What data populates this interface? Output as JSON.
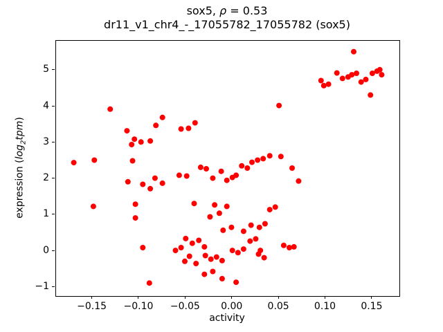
{
  "title": {
    "prefix": "sox5, ",
    "rho": "ρ",
    "rest": " = 0.53"
  },
  "subtitle": "dr11_v1_chr4_-_17055782_17055782 (sox5)",
  "axes": {
    "xlabel": "activity",
    "ylabel_pre": "expression (",
    "ylabel_log": "log",
    "ylabel_sub": "2",
    "ylabel_tpm": "tpm",
    "ylabel_close": ")"
  },
  "chart_data": {
    "type": "scatter",
    "title": "sox5, ρ = 0.53",
    "subtitle": "dr11_v1_chr4_-_17055782_17055782 (sox5)",
    "xlabel": "activity",
    "ylabel": "expression (log2 tpm)",
    "xlim": [
      -0.189,
      0.179
    ],
    "ylim": [
      -1.24,
      5.82
    ],
    "xticks": [
      -0.15,
      -0.1,
      -0.05,
      0.0,
      0.05,
      0.1,
      0.15
    ],
    "xtick_labels": [
      "−0.15",
      "−0.10",
      "−0.05",
      "0.00",
      "0.05",
      "0.10",
      "0.15"
    ],
    "yticks": [
      -1,
      0,
      1,
      2,
      3,
      4,
      5
    ],
    "ytick_labels": [
      "−1",
      "0",
      "1",
      "2",
      "3",
      "4",
      "5"
    ],
    "grid": false,
    "legend": "none",
    "marker_color": "#ff0000",
    "marker_diameter_px": 8,
    "points": [
      [
        0.13,
        5.52
      ],
      [
        0.095,
        4.72
      ],
      [
        0.098,
        4.58
      ],
      [
        0.103,
        4.62
      ],
      [
        0.112,
        4.93
      ],
      [
        0.118,
        4.78
      ],
      [
        0.124,
        4.82
      ],
      [
        0.128,
        4.88
      ],
      [
        0.133,
        4.92
      ],
      [
        0.138,
        4.68
      ],
      [
        0.143,
        4.75
      ],
      [
        0.15,
        4.92
      ],
      [
        0.155,
        4.98
      ],
      [
        0.158,
        5.02
      ],
      [
        0.16,
        4.88
      ],
      [
        0.148,
        4.32
      ],
      [
        -0.131,
        3.93
      ],
      [
        0.05,
        4.03
      ],
      [
        -0.075,
        3.7
      ],
      [
        -0.082,
        3.48
      ],
      [
        -0.04,
        3.55
      ],
      [
        -0.055,
        3.38
      ],
      [
        -0.047,
        3.4
      ],
      [
        -0.113,
        3.33
      ],
      [
        -0.105,
        3.1
      ],
      [
        -0.098,
        3.02
      ],
      [
        -0.108,
        2.95
      ],
      [
        -0.088,
        3.05
      ],
      [
        -0.17,
        2.45
      ],
      [
        -0.148,
        2.52
      ],
      [
        -0.107,
        2.5
      ],
      [
        -0.149,
        1.24
      ],
      [
        -0.104,
        1.3
      ],
      [
        -0.112,
        1.92
      ],
      [
        -0.096,
        1.85
      ],
      [
        -0.088,
        1.73
      ],
      [
        -0.083,
        2.02
      ],
      [
        -0.075,
        1.88
      ],
      [
        -0.104,
        0.92
      ],
      [
        -0.096,
        0.1
      ],
      [
        -0.089,
        -0.88
      ],
      [
        -0.057,
        2.1
      ],
      [
        -0.049,
        2.08
      ],
      [
        -0.034,
        2.32
      ],
      [
        -0.028,
        2.28
      ],
      [
        -0.021,
        2.02
      ],
      [
        -0.012,
        2.21
      ],
      [
        -0.006,
        1.96
      ],
      [
        0.0,
        2.04
      ],
      [
        0.004,
        2.1
      ],
      [
        0.01,
        2.36
      ],
      [
        0.016,
        2.3
      ],
      [
        0.021,
        2.46
      ],
      [
        0.027,
        2.52
      ],
      [
        0.033,
        2.56
      ],
      [
        0.04,
        2.64
      ],
      [
        0.052,
        2.62
      ],
      [
        0.064,
        2.3
      ],
      [
        0.071,
        1.94
      ],
      [
        -0.041,
        1.32
      ],
      [
        -0.019,
        1.28
      ],
      [
        -0.006,
        1.24
      ],
      [
        -0.014,
        1.05
      ],
      [
        -0.024,
        0.95
      ],
      [
        0.04,
        1.15
      ],
      [
        0.046,
        1.22
      ],
      [
        -0.001,
        0.66
      ],
      [
        -0.01,
        0.58
      ],
      [
        0.012,
        0.55
      ],
      [
        0.02,
        0.72
      ],
      [
        0.029,
        0.66
      ],
      [
        0.035,
        0.76
      ],
      [
        -0.036,
        0.3
      ],
      [
        -0.043,
        0.22
      ],
      [
        -0.05,
        0.35
      ],
      [
        -0.055,
        0.1
      ],
      [
        -0.061,
        0.02
      ],
      [
        -0.03,
        0.12
      ],
      [
        0.0,
        0.02
      ],
      [
        0.006,
        -0.04
      ],
      [
        0.012,
        0.06
      ],
      [
        0.019,
        0.28
      ],
      [
        0.025,
        0.34
      ],
      [
        0.03,
        0.02
      ],
      [
        0.055,
        0.16
      ],
      [
        0.061,
        0.1
      ],
      [
        0.066,
        0.12
      ],
      [
        -0.046,
        -0.14
      ],
      [
        -0.051,
        -0.28
      ],
      [
        -0.039,
        -0.34
      ],
      [
        -0.029,
        -0.12
      ],
      [
        -0.023,
        -0.22
      ],
      [
        -0.017,
        -0.16
      ],
      [
        -0.011,
        -0.26
      ],
      [
        0.034,
        -0.18
      ],
      [
        0.028,
        -0.08
      ],
      [
        -0.03,
        -0.64
      ],
      [
        -0.011,
        -0.76
      ],
      [
        0.004,
        -0.86
      ],
      [
        -0.021,
        -0.56
      ]
    ]
  }
}
